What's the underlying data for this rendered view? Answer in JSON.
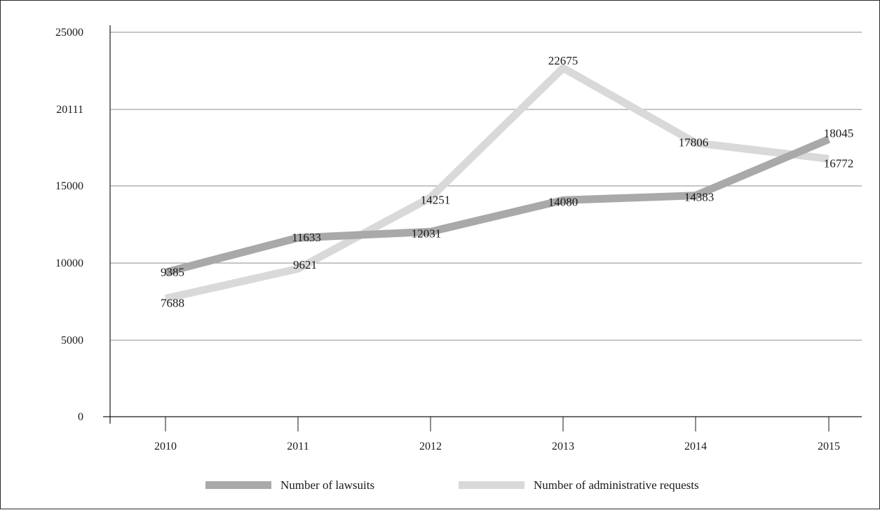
{
  "chart_data": {
    "type": "line",
    "categories": [
      "2010",
      "2011",
      "2012",
      "2013",
      "2014",
      "2015"
    ],
    "series": [
      {
        "name": "Number of lawsuits",
        "values": [
          9385,
          11633,
          12031,
          14080,
          14383,
          18045
        ],
        "color": "#a9a9a9"
      },
      {
        "name": "Number of administrative requests",
        "values": [
          7688,
          9621,
          14251,
          22675,
          17806,
          16772
        ],
        "color": "#d9d9d9"
      }
    ],
    "y_ticks": [
      "0",
      "5000",
      "10000",
      "15000",
      "20111",
      "25000"
    ],
    "ylim": [
      0,
      25000
    ],
    "grid": "horizontal",
    "legend": "bottom"
  }
}
